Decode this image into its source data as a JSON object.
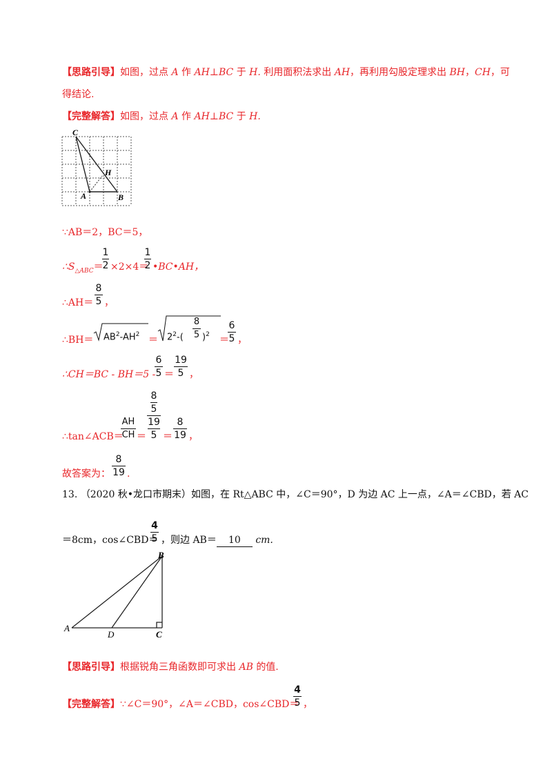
{
  "hint1": {
    "tag": "【思路引导】",
    "text1": "如图，过点",
    "A": "A",
    "text2": "作",
    "AHBC": "AH⊥BC",
    "text3": "于",
    "H": "H.",
    "text4": "利用面积法求出",
    "AH": "AH",
    "text5": "，再利用勾股定理求出",
    "BH": "BH",
    "comma": "，",
    "CH": "CH",
    "text6": "，可",
    "text7": "得结论."
  },
  "ans1": {
    "tag": "【完整解答】",
    "text": "如图，过点",
    "A": "A",
    "zuo": "作",
    "AHBC": "AH⊥BC",
    "yu": "于",
    "H": "H."
  },
  "grid_labels": {
    "C": "C",
    "H": "H",
    "A": "A",
    "B": "B"
  },
  "steps": {
    "s1": "∵AB＝2，BC＝5，",
    "s2_pre": "∴S",
    "s2_sub": "△ABC",
    "s2_eq": "＝",
    "s2_mid": "×2×4＝",
    "s2_end": "•BC•AH，",
    "s3_pre": "∴AH＝",
    "s3_end": "，",
    "s4_pre": "∴BH＝",
    "s4_rad1": "AB",
    "s4_rad1b": "-AH",
    "s4_eq": "＝",
    "s4_rad2": "2",
    "s4_rad2b": "-(",
    "s4_rad2c": ")",
    "s4_eq2": "＝",
    "s4_end": "，",
    "s5_pre": "∴CH＝BC - BH＝5 -",
    "s5_eq": "＝",
    "s5_end": "，",
    "s6_pre": "∴tan∠ACB＝",
    "s6_eq1": "＝",
    "s6_eq2": "＝",
    "s6_end": "，",
    "s7_pre": "故答案为：",
    "s7_end": "."
  },
  "fracs": {
    "half_n": "1",
    "half_d": "2",
    "f85_n": "8",
    "f85_d": "5",
    "f65_n": "6",
    "f65_d": "5",
    "f195_n": "19",
    "f195_d": "5",
    "fAH_n": "AH",
    "fAH_d": "CH",
    "f819_n": "8",
    "f819_d": "19",
    "f45_n": "4",
    "f45_d": "5",
    "sq": "2"
  },
  "q13": {
    "num": "13.",
    "line1": "（2020 秋•龙口市期末）如图，在 Rt△ABC 中，∠C＝90°，D 为边 AC 上一点，∠A＝∠CBD，若 AC",
    "line2_pre": "＝8cm，cos∠CBD＝",
    "line2_mid": "，则边 AB＝",
    "answer": "10",
    "unit": "cm."
  },
  "triangle_labels": {
    "A": "A",
    "B": "B",
    "C": "C",
    "D": "D"
  },
  "hint2": {
    "tag": "【思路引导】",
    "text": "根据锐角三角函数即可求出",
    "AB": "AB",
    "tail": "的值."
  },
  "ans2": {
    "tag": "【完整解答】",
    "text": "∵∠C＝90°，∠A＝∠CBD，cos∠CBD＝",
    "end": "，"
  }
}
